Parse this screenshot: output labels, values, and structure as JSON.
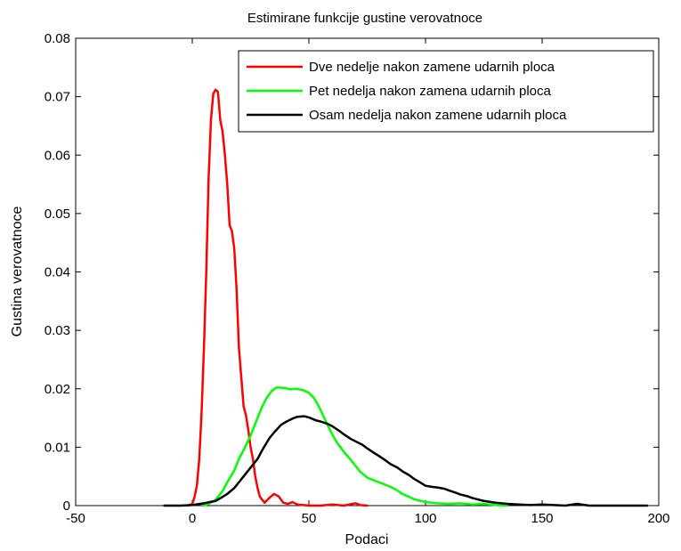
{
  "chart_data": {
    "type": "line",
    "title": "Estimirane funkcije gustine verovatnoce",
    "xlabel": "Podaci",
    "ylabel": "Gustina verovatnoce",
    "xlim": [
      -50,
      200
    ],
    "ylim": [
      0,
      0.08
    ],
    "xticks": [
      -50,
      0,
      50,
      100,
      150,
      200
    ],
    "xtick_labels": [
      "-50",
      "0",
      "50",
      "100",
      "150",
      "200"
    ],
    "yticks": [
      0,
      0.01,
      0.02,
      0.03,
      0.04,
      0.05,
      0.06,
      0.07,
      0.08
    ],
    "ytick_labels": [
      "0",
      "0.01",
      "0.02",
      "0.03",
      "0.04",
      "0.05",
      "0.06",
      "0.07",
      "0.08"
    ],
    "grid": false,
    "legend_position": "top-right",
    "series": [
      {
        "name": "Dve nedelje nakon zamene udarnih ploca",
        "color": "#ff0000",
        "points": [
          [
            -2,
            0
          ],
          [
            0,
            0.0003
          ],
          [
            1,
            0.0015
          ],
          [
            2,
            0.0035
          ],
          [
            3,
            0.008
          ],
          [
            4,
            0.016
          ],
          [
            5,
            0.027
          ],
          [
            6,
            0.04
          ],
          [
            7,
            0.056
          ],
          [
            8,
            0.066
          ],
          [
            9,
            0.0705
          ],
          [
            10,
            0.0712
          ],
          [
            11,
            0.0708
          ],
          [
            12,
            0.066
          ],
          [
            13,
            0.064
          ],
          [
            14,
            0.06
          ],
          [
            15,
            0.055
          ],
          [
            16,
            0.048
          ],
          [
            17,
            0.047
          ],
          [
            18,
            0.044
          ],
          [
            19,
            0.037
          ],
          [
            20,
            0.027
          ],
          [
            21,
            0.022
          ],
          [
            22,
            0.017
          ],
          [
            23,
            0.0155
          ],
          [
            24,
            0.013
          ],
          [
            25,
            0.01
          ],
          [
            26,
            0.008
          ],
          [
            27,
            0.005
          ],
          [
            28,
            0.003
          ],
          [
            29,
            0.0015
          ],
          [
            30,
            0.001
          ],
          [
            31,
            0.0005
          ],
          [
            33,
            0.0013
          ],
          [
            35,
            0.002
          ],
          [
            37,
            0.0016
          ],
          [
            39,
            0.0005
          ],
          [
            41,
            0.0003
          ],
          [
            43,
            0.0006
          ],
          [
            45,
            0.0002
          ],
          [
            50,
            0
          ],
          [
            55,
            0
          ],
          [
            60,
            0.0002
          ],
          [
            65,
            0
          ],
          [
            70,
            0.0004
          ],
          [
            72,
            0.0001
          ],
          [
            75,
            0
          ]
        ]
      },
      {
        "name": "Pet nedelja nakon zamena udarnih ploca",
        "color": "#00ff00",
        "points": [
          [
            5,
            0
          ],
          [
            7,
            0.0003
          ],
          [
            10,
            0.001
          ],
          [
            13,
            0.0025
          ],
          [
            15,
            0.004
          ],
          [
            18,
            0.006
          ],
          [
            20,
            0.008
          ],
          [
            22,
            0.0095
          ],
          [
            25,
            0.012
          ],
          [
            28,
            0.015
          ],
          [
            30,
            0.017
          ],
          [
            32,
            0.0185
          ],
          [
            34,
            0.0196
          ],
          [
            36,
            0.0202
          ],
          [
            38,
            0.0202
          ],
          [
            40,
            0.0201
          ],
          [
            42,
            0.0199
          ],
          [
            44,
            0.02
          ],
          [
            46,
            0.0199
          ],
          [
            48,
            0.0197
          ],
          [
            50,
            0.0193
          ],
          [
            52,
            0.0185
          ],
          [
            54,
            0.0172
          ],
          [
            56,
            0.0155
          ],
          [
            58,
            0.0138
          ],
          [
            60,
            0.0122
          ],
          [
            62,
            0.0108
          ],
          [
            65,
            0.0092
          ],
          [
            68,
            0.0078
          ],
          [
            70,
            0.0068
          ],
          [
            72,
            0.0058
          ],
          [
            75,
            0.0048
          ],
          [
            78,
            0.0043
          ],
          [
            80,
            0.004
          ],
          [
            82,
            0.0037
          ],
          [
            85,
            0.0032
          ],
          [
            88,
            0.0026
          ],
          [
            90,
            0.002
          ],
          [
            93,
            0.0015
          ],
          [
            95,
            0.0011
          ],
          [
            98,
            0.0008
          ],
          [
            100,
            0.0006
          ],
          [
            105,
            0.0004
          ],
          [
            110,
            0.0003
          ],
          [
            115,
            0.0004
          ],
          [
            120,
            0.0002
          ],
          [
            125,
            0.0003
          ],
          [
            130,
            0.0001
          ],
          [
            135,
            0
          ]
        ]
      },
      {
        "name": "Osam nedelja nakon zamene udarnih ploca",
        "color": "#000000",
        "points": [
          [
            -12,
            0
          ],
          [
            -5,
            0
          ],
          [
            0,
            0.0001
          ],
          [
            5,
            0.0004
          ],
          [
            10,
            0.0008
          ],
          [
            13,
            0.0015
          ],
          [
            15,
            0.002
          ],
          [
            18,
            0.003
          ],
          [
            20,
            0.004
          ],
          [
            22,
            0.005
          ],
          [
            25,
            0.0065
          ],
          [
            28,
            0.008
          ],
          [
            30,
            0.0095
          ],
          [
            33,
            0.0115
          ],
          [
            35,
            0.0125
          ],
          [
            38,
            0.0138
          ],
          [
            40,
            0.0143
          ],
          [
            43,
            0.0149
          ],
          [
            45,
            0.0152
          ],
          [
            48,
            0.0153
          ],
          [
            50,
            0.0151
          ],
          [
            53,
            0.0146
          ],
          [
            55,
            0.0144
          ],
          [
            58,
            0.014
          ],
          [
            60,
            0.0136
          ],
          [
            63,
            0.0128
          ],
          [
            65,
            0.0122
          ],
          [
            68,
            0.0114
          ],
          [
            70,
            0.011
          ],
          [
            73,
            0.0104
          ],
          [
            75,
            0.0098
          ],
          [
            78,
            0.009
          ],
          [
            80,
            0.0085
          ],
          [
            83,
            0.0077
          ],
          [
            85,
            0.0071
          ],
          [
            88,
            0.0065
          ],
          [
            90,
            0.0059
          ],
          [
            93,
            0.0052
          ],
          [
            95,
            0.0046
          ],
          [
            98,
            0.0039
          ],
          [
            100,
            0.0034
          ],
          [
            103,
            0.0032
          ],
          [
            105,
            0.0031
          ],
          [
            108,
            0.0029
          ],
          [
            110,
            0.0026
          ],
          [
            113,
            0.0022
          ],
          [
            115,
            0.0019
          ],
          [
            118,
            0.0016
          ],
          [
            120,
            0.0013
          ],
          [
            123,
            0.001
          ],
          [
            125,
            0.0008
          ],
          [
            130,
            0.0005
          ],
          [
            135,
            0.0003
          ],
          [
            140,
            0.0002
          ],
          [
            145,
            0.0001
          ],
          [
            150,
            0.0002
          ],
          [
            155,
            0.0001
          ],
          [
            160,
            0
          ],
          [
            165,
            0.0003
          ],
          [
            170,
            0
          ],
          [
            180,
            0
          ],
          [
            190,
            0
          ],
          [
            195,
            0
          ]
        ]
      }
    ]
  }
}
